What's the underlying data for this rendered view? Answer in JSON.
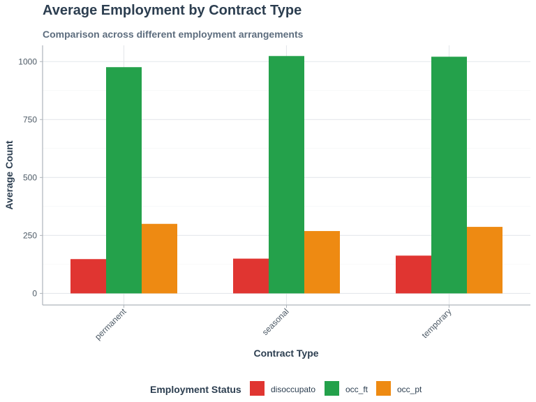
{
  "chart_data": {
    "type": "bar",
    "title": "Average Employment by Contract Type",
    "subtitle": "Comparison across different employment arrangements",
    "xlabel": "Contract Type",
    "ylabel": "Average Count",
    "categories": [
      "permanent",
      "seasonal",
      "temporary"
    ],
    "series": [
      {
        "name": "disoccupato",
        "color": "#e03531",
        "values": [
          148,
          150,
          163
        ]
      },
      {
        "name": "occ_ft",
        "color": "#24a14b",
        "values": [
          976,
          1024,
          1021
        ]
      },
      {
        "name": "occ_pt",
        "color": "#ee8a12",
        "values": [
          300,
          269,
          287
        ]
      }
    ],
    "ylim": [
      -50,
      1070
    ],
    "yticks": [
      0,
      250,
      500,
      750,
      1000
    ],
    "yticklabels": [
      "0",
      "250",
      "500",
      "750",
      "1000"
    ],
    "grid": true,
    "legend": {
      "title": "Employment Status",
      "position": "bottom"
    }
  }
}
